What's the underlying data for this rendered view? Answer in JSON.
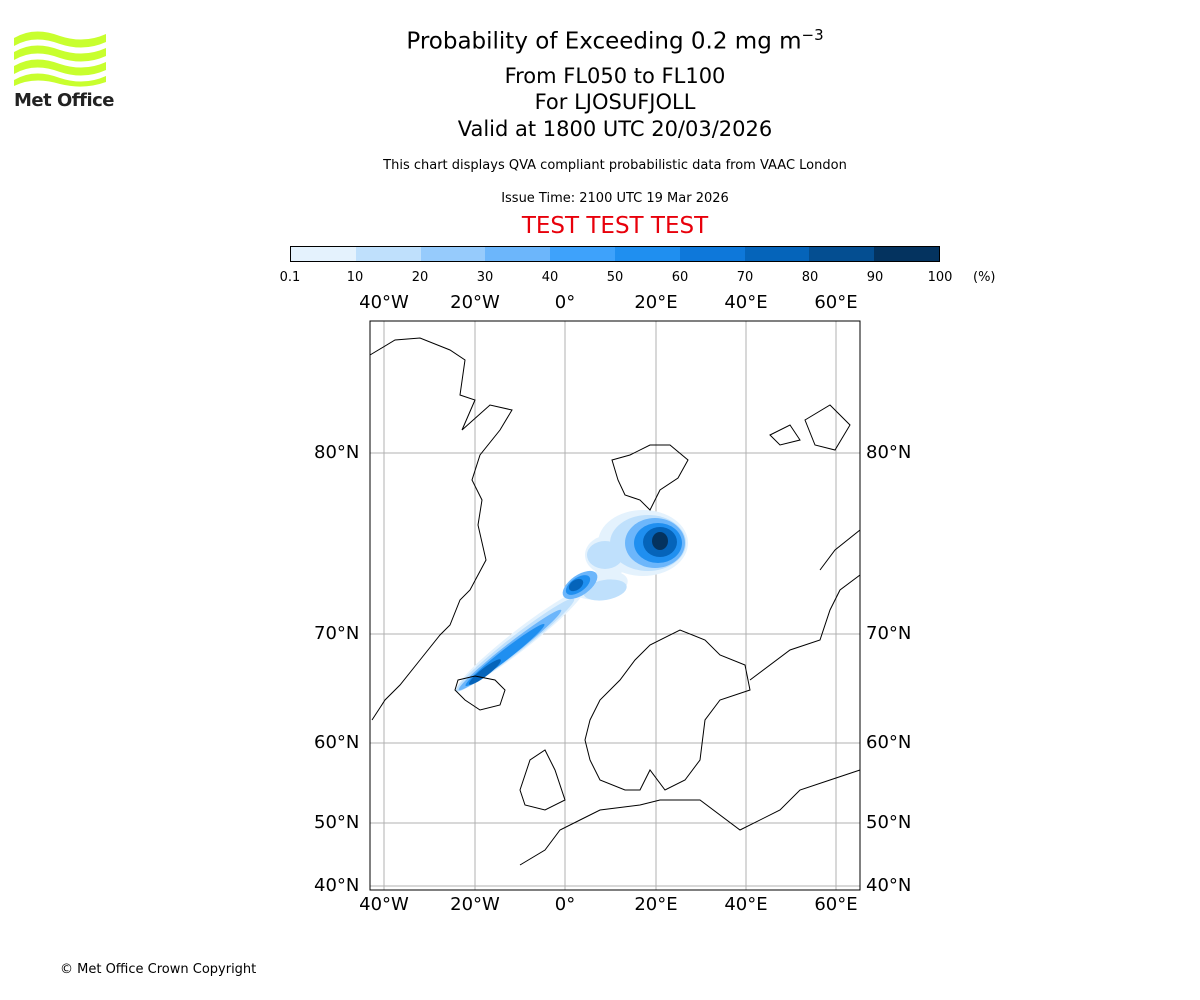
{
  "logo": {
    "text": "Met Office",
    "color": "#c8ff2e"
  },
  "header": {
    "title": "Probability of Exceeding 0.2 mg m",
    "title_superscript": "−3",
    "levels": "From FL050 to FL100",
    "volcano": "For LJOSUFJOLL",
    "valid": "Valid at 1800 UTC 20/03/2026",
    "description": "This chart displays QVA compliant probabilistic data from VAAC London",
    "issue_time": "Issue Time: 2100 UTC 19 Mar 2026",
    "test_banner": "TEST TEST TEST",
    "test_color": "#e8000b"
  },
  "colorbar": {
    "ticks": [
      "0.1",
      "10",
      "20",
      "30",
      "40",
      "50",
      "60",
      "70",
      "80",
      "90",
      "100"
    ],
    "unit": "(%)",
    "colors": [
      "#e4f2fd",
      "#bfe0fc",
      "#96cbfc",
      "#6cb6fb",
      "#3ea2fb",
      "#1f8ff0",
      "#0e78da",
      "#0564ba",
      "#044e91",
      "#04335f"
    ]
  },
  "map": {
    "lon_labels": [
      "40°W",
      "20°W",
      "0°",
      "20°E",
      "40°E",
      "60°E"
    ],
    "lat_labels": [
      "80°N",
      "70°N",
      "60°N",
      "50°N",
      "40°N"
    ]
  },
  "footer": {
    "copyright": "© Met Office Crown Copyright"
  }
}
